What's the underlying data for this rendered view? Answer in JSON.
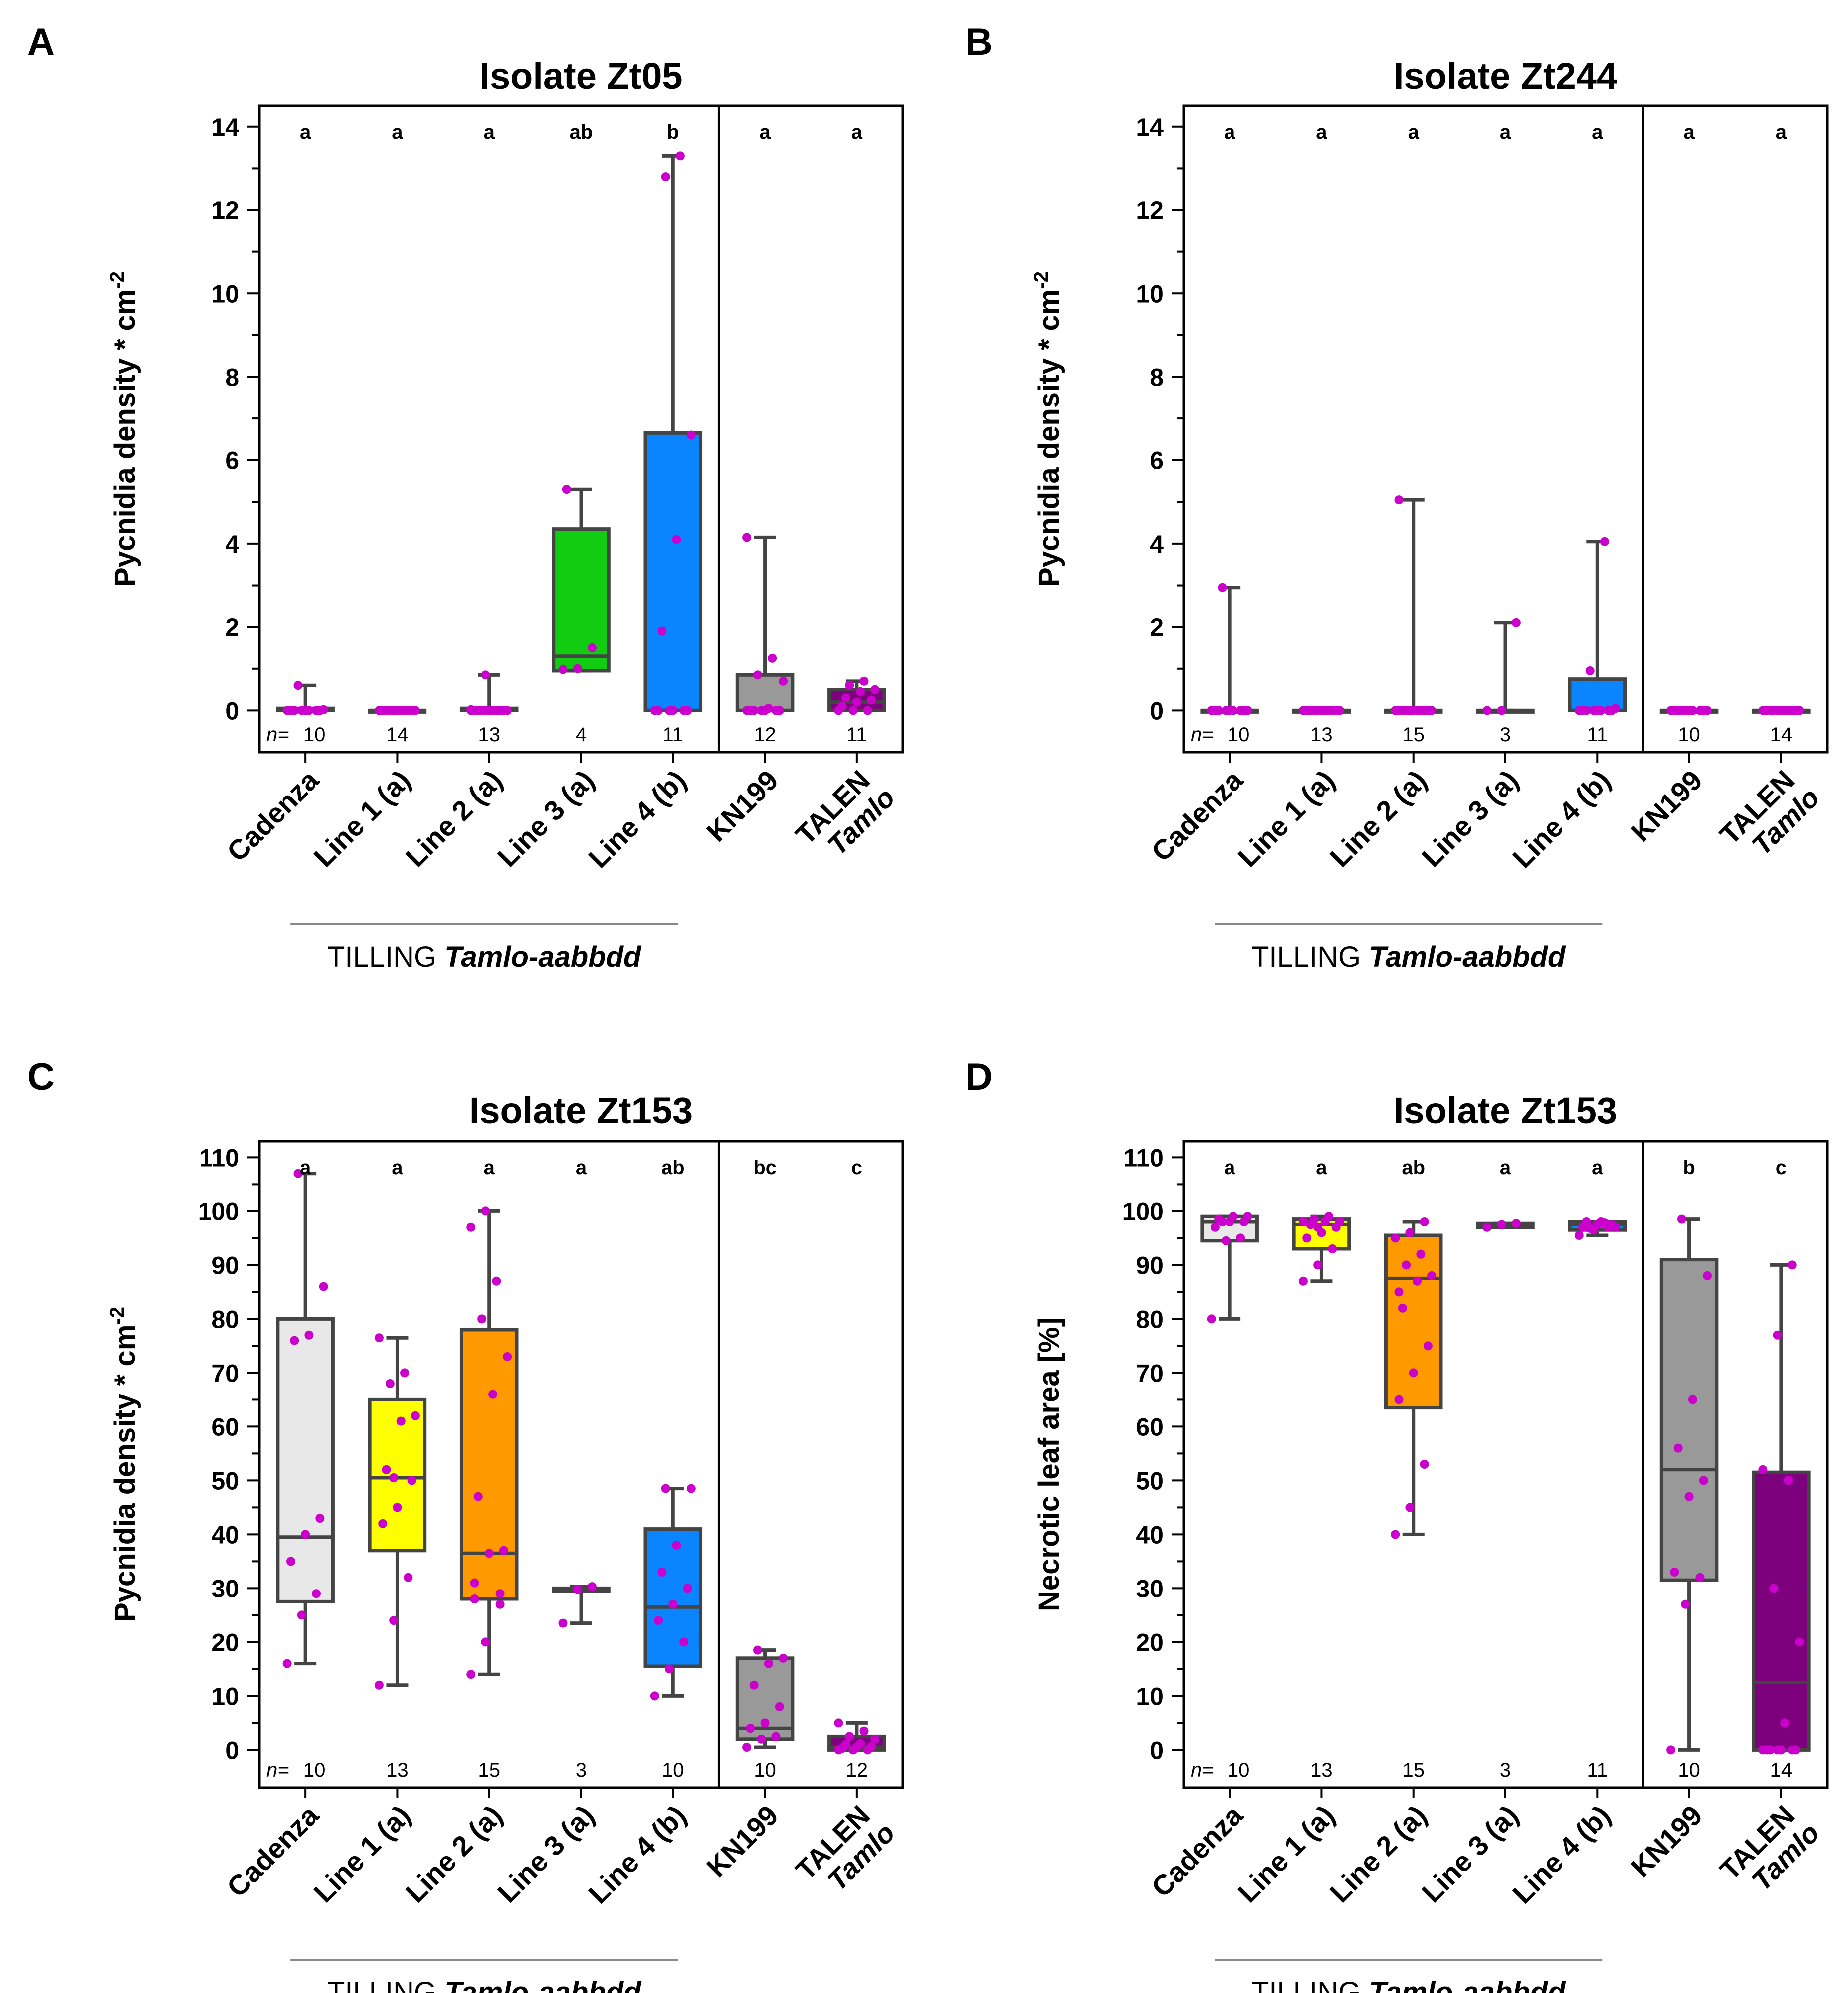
{
  "colors": {
    "Cadenza": "#e8e8e8",
    "Line 1 (a)": "#ffff00",
    "Line 2 (a)": "#ff9900",
    "Line 3 (a)": "#11cc11",
    "Line 4 (b)": "#0a84ff",
    "KN199": "#999999",
    "TALEN": "#7d007d",
    "points": "#cc00cc",
    "box_stroke": "#444444"
  },
  "group_label": {
    "prefix": "TILLING ",
    "italic": "Tamlo-aabbdd"
  },
  "n_prefix": "n=",
  "chart_data": [
    {
      "panel": "A",
      "type": "box",
      "title": "Isolate Zt05",
      "ylabel": "Pycnidia density * cm",
      "ylabel_sup": "-2",
      "ylim": [
        -1,
        14.5
      ],
      "yticks": [
        0,
        2,
        4,
        6,
        8,
        10,
        12,
        14
      ],
      "categories": [
        {
          "label": "Cadenza",
          "italic": "",
          "fill": "Cadenza",
          "q1": 0,
          "median": 0,
          "q3": 0.05,
          "whisker_low": 0,
          "whisker_high": 0.6,
          "letter": "a",
          "n": "10",
          "points": [
            0,
            0,
            0,
            0,
            0,
            0,
            0,
            0,
            0.02,
            0.6
          ]
        },
        {
          "label": "Line 1 (a)",
          "italic": "",
          "fill": "Line 1 (a)",
          "q1": 0,
          "median": 0,
          "q3": 0,
          "whisker_low": 0,
          "whisker_high": 0,
          "letter": "a",
          "n": "14",
          "points": [
            0,
            0,
            0,
            0,
            0,
            0,
            0,
            0,
            0,
            0,
            0,
            0,
            0,
            0
          ]
        },
        {
          "label": "Line 2 (a)",
          "italic": "",
          "fill": "Line 2 (a)",
          "q1": 0,
          "median": 0,
          "q3": 0.05,
          "whisker_low": 0,
          "whisker_high": 0.85,
          "letter": "a",
          "n": "13",
          "points": [
            0,
            0,
            0,
            0,
            0,
            0,
            0,
            0,
            0,
            0,
            0,
            0.02,
            0.85
          ]
        },
        {
          "label": "Line 3 (a)",
          "italic": "",
          "fill": "Line 3 (a)",
          "q1": 0.95,
          "median": 1.3,
          "q3": 4.35,
          "whisker_low": 0.95,
          "whisker_high": 5.3,
          "letter": "ab",
          "n": "4",
          "points": [
            0.98,
            1.0,
            1.5,
            5.3
          ]
        },
        {
          "label": "Line 4 (b)",
          "italic": "",
          "fill": "Line 4 (b)",
          "q1": 0,
          "median": 0,
          "q3": 6.65,
          "whisker_low": 0,
          "whisker_high": 13.3,
          "letter": "b",
          "n": "11",
          "points": [
            0,
            0,
            0,
            0,
            0,
            0,
            1.9,
            4.1,
            6.6,
            12.8,
            13.3
          ]
        },
        {
          "label": "KN199",
          "italic": "",
          "fill": "KN199",
          "q1": 0,
          "median": 0,
          "q3": 0.85,
          "whisker_low": 0,
          "whisker_high": 4.15,
          "letter": "a",
          "n": "12",
          "points": [
            0,
            0,
            0,
            0,
            0,
            0,
            0,
            0.05,
            0.7,
            0.85,
            1.25,
            4.15
          ]
        },
        {
          "label": "TALEN",
          "italic": "Tamlo",
          "fill": "TALEN",
          "q1": 0,
          "median": 0.2,
          "q3": 0.5,
          "whisker_low": 0,
          "whisker_high": 0.7,
          "letter": "a",
          "n": "11",
          "points": [
            0,
            0,
            0,
            0.1,
            0.2,
            0.25,
            0.3,
            0.45,
            0.5,
            0.6,
            0.7
          ]
        }
      ]
    },
    {
      "panel": "B",
      "type": "box",
      "title": "Isolate Zt244",
      "ylabel": "Pycnidia density * cm",
      "ylabel_sup": "-2",
      "ylim": [
        -1,
        14.5
      ],
      "yticks": [
        0,
        2,
        4,
        6,
        8,
        10,
        12,
        14
      ],
      "categories": [
        {
          "label": "Cadenza",
          "italic": "",
          "fill": "Cadenza",
          "q1": 0,
          "median": 0,
          "q3": 0,
          "whisker_low": 0,
          "whisker_high": 2.95,
          "letter": "a",
          "n": "10",
          "points": [
            0,
            0,
            0,
            0,
            0,
            0,
            0,
            0,
            0,
            2.95
          ]
        },
        {
          "label": "Line 1 (a)",
          "italic": "",
          "fill": "Line 1 (a)",
          "q1": 0,
          "median": 0,
          "q3": 0,
          "whisker_low": 0,
          "whisker_high": 0,
          "letter": "a",
          "n": "13",
          "points": [
            0,
            0,
            0,
            0,
            0,
            0,
            0,
            0,
            0,
            0,
            0,
            0,
            0
          ]
        },
        {
          "label": "Line 2 (a)",
          "italic": "",
          "fill": "Line 2 (a)",
          "q1": 0,
          "median": 0,
          "q3": 0,
          "whisker_low": 0,
          "whisker_high": 5.05,
          "letter": "a",
          "n": "15",
          "points": [
            0,
            0,
            0,
            0,
            0,
            0,
            0,
            0,
            0,
            0,
            0,
            0,
            0,
            0,
            5.05
          ]
        },
        {
          "label": "Line 3 (a)",
          "italic": "",
          "fill": "Line 3 (a)",
          "q1": 0,
          "median": 0,
          "q3": 0,
          "whisker_low": 0,
          "whisker_high": 2.1,
          "letter": "a",
          "n": "3",
          "points": [
            0,
            0,
            2.1
          ]
        },
        {
          "label": "Line 4 (b)",
          "italic": "",
          "fill": "Line 4 (b)",
          "q1": 0,
          "median": 0,
          "q3": 0.75,
          "whisker_low": 0,
          "whisker_high": 4.05,
          "letter": "a",
          "n": "11",
          "points": [
            0,
            0,
            0,
            0,
            0,
            0,
            0,
            0,
            0.05,
            0.95,
            4.05
          ]
        },
        {
          "label": "KN199",
          "italic": "",
          "fill": "KN199",
          "q1": 0,
          "median": 0,
          "q3": 0,
          "whisker_low": 0,
          "whisker_high": 0,
          "letter": "a",
          "n": "10",
          "points": [
            0,
            0,
            0,
            0,
            0,
            0,
            0,
            0,
            0,
            0
          ]
        },
        {
          "label": "TALEN",
          "italic": "Tamlo",
          "fill": "TALEN",
          "q1": 0,
          "median": 0,
          "q3": 0,
          "whisker_low": 0,
          "whisker_high": 0,
          "letter": "a",
          "n": "14",
          "points": [
            0,
            0,
            0,
            0,
            0,
            0,
            0,
            0,
            0,
            0,
            0,
            0,
            0,
            0
          ]
        }
      ]
    },
    {
      "panel": "C",
      "type": "box",
      "title": "Isolate Zt153",
      "ylabel": "Pycnidia density * cm",
      "ylabel_sup": "-2",
      "ylim": [
        -7,
        113
      ],
      "yticks": [
        0,
        10,
        20,
        30,
        40,
        50,
        60,
        70,
        80,
        90,
        100,
        110
      ],
      "categories": [
        {
          "label": "Cadenza",
          "italic": "",
          "fill": "Cadenza",
          "q1": 27.5,
          "median": 39.5,
          "q3": 80,
          "whisker_low": 16,
          "whisker_high": 107,
          "letter": "a",
          "n": "10",
          "points": [
            16,
            25,
            29,
            35,
            40,
            43,
            76,
            77,
            86,
            107
          ]
        },
        {
          "label": "Line 1 (a)",
          "italic": "",
          "fill": "Line 1 (a)",
          "q1": 37,
          "median": 50.5,
          "q3": 65,
          "whisker_low": 12,
          "whisker_high": 76.5,
          "letter": "a",
          "n": "13",
          "points": [
            12,
            24,
            32,
            42,
            45,
            50,
            52,
            61,
            62,
            68,
            70,
            76.5,
            50.5
          ]
        },
        {
          "label": "Line 2 (a)",
          "italic": "",
          "fill": "Line 2 (a)",
          "q1": 28,
          "median": 36.5,
          "q3": 78,
          "whisker_low": 14,
          "whisker_high": 100,
          "letter": "a",
          "n": "15",
          "points": [
            14,
            20,
            27,
            31,
            36.5,
            37,
            47,
            66,
            73,
            80,
            87,
            97,
            100,
            29,
            28
          ]
        },
        {
          "label": "Line 3 (a)",
          "italic": "",
          "fill": "Line 3 (a)",
          "q1": 29.5,
          "median": 29.8,
          "q3": 30,
          "whisker_low": 23.5,
          "whisker_high": 30.3,
          "letter": "a",
          "n": "3",
          "points": [
            23.5,
            29.8,
            30.3
          ]
        },
        {
          "label": "Line 4 (b)",
          "italic": "",
          "fill": "Line 4 (b)",
          "q1": 15.5,
          "median": 26.5,
          "q3": 41,
          "whisker_low": 10,
          "whisker_high": 48.5,
          "letter": "ab",
          "n": "10",
          "points": [
            10,
            15,
            20,
            24,
            27,
            30,
            33,
            38,
            48.5,
            48.5
          ]
        },
        {
          "label": "KN199",
          "italic": "",
          "fill": "KN199",
          "q1": 2,
          "median": 4,
          "q3": 17,
          "whisker_low": 0.5,
          "whisker_high": 18.5,
          "letter": "bc",
          "n": "10",
          "points": [
            0.5,
            2,
            2.5,
            4,
            5,
            8,
            12,
            16,
            17,
            18.5
          ]
        },
        {
          "label": "TALEN",
          "italic": "Tamlo",
          "fill": "TALEN",
          "q1": 0,
          "median": 0.5,
          "q3": 2.5,
          "whisker_low": 0,
          "whisker_high": 5,
          "letter": "c",
          "n": "12",
          "points": [
            0,
            0,
            0,
            0.3,
            0.5,
            0.6,
            1,
            1.2,
            2,
            2.5,
            3.5,
            5
          ]
        }
      ]
    },
    {
      "panel": "D",
      "type": "box",
      "title": "Isolate Zt153",
      "ylabel": "Necrotic leaf area [%]",
      "ylabel_sup": "",
      "ylim": [
        -7,
        113
      ],
      "yticks": [
        0,
        10,
        20,
        30,
        40,
        50,
        60,
        70,
        80,
        90,
        100,
        110
      ],
      "categories": [
        {
          "label": "Cadenza",
          "italic": "",
          "fill": "Cadenza",
          "q1": 94.5,
          "median": 98,
          "q3": 99,
          "whisker_low": 80,
          "whisker_high": 99,
          "letter": "a",
          "n": "10",
          "points": [
            80,
            94.5,
            95,
            97,
            98,
            98,
            98.5,
            99,
            99,
            98
          ]
        },
        {
          "label": "Line 1 (a)",
          "italic": "",
          "fill": "Line 1 (a)",
          "q1": 93,
          "median": 97.5,
          "q3": 98.5,
          "whisker_low": 87,
          "whisker_high": 99,
          "letter": "a",
          "n": "13",
          "points": [
            87,
            90,
            93,
            95,
            96,
            97,
            97.5,
            98,
            98,
            98.5,
            99,
            98,
            97
          ]
        },
        {
          "label": "Line 2 (a)",
          "italic": "",
          "fill": "Line 2 (a)",
          "q1": 63.5,
          "median": 87.5,
          "q3": 95.5,
          "whisker_low": 40,
          "whisker_high": 98,
          "letter": "ab",
          "n": "15",
          "points": [
            40,
            45,
            53,
            65,
            70,
            75,
            82,
            87,
            88,
            90,
            92,
            95,
            96,
            98,
            85
          ]
        },
        {
          "label": "Line 3 (a)",
          "italic": "",
          "fill": "Line 3 (a)",
          "q1": 97,
          "median": 97.5,
          "q3": 97.7,
          "whisker_low": 97,
          "whisker_high": 97.7,
          "letter": "a",
          "n": "3",
          "points": [
            97,
            97.5,
            97.7
          ]
        },
        {
          "label": "Line 4 (b)",
          "italic": "",
          "fill": "Line 4 (b)",
          "q1": 96.5,
          "median": 97.5,
          "q3": 98,
          "whisker_low": 95.5,
          "whisker_high": 98,
          "letter": "a",
          "n": "11",
          "points": [
            95.5,
            96.5,
            97,
            97,
            97.5,
            97.5,
            98,
            98,
            97,
            96.8,
            97.8
          ]
        },
        {
          "label": "KN199",
          "italic": "",
          "fill": "KN199",
          "q1": 31.5,
          "median": 52,
          "q3": 91,
          "whisker_low": 0,
          "whisker_high": 98.5,
          "letter": "b",
          "n": "10",
          "points": [
            0,
            27,
            32,
            33,
            47,
            50,
            56,
            65,
            88,
            98.5
          ]
        },
        {
          "label": "TALEN",
          "italic": "Tamlo",
          "fill": "TALEN",
          "q1": 0,
          "median": 12.5,
          "q3": 51.5,
          "whisker_low": 0,
          "whisker_high": 90,
          "letter": "c",
          "n": "14",
          "points": [
            0,
            0,
            0,
            0,
            0,
            0,
            0,
            5,
            20,
            30,
            50,
            52,
            77,
            90
          ]
        }
      ]
    }
  ]
}
